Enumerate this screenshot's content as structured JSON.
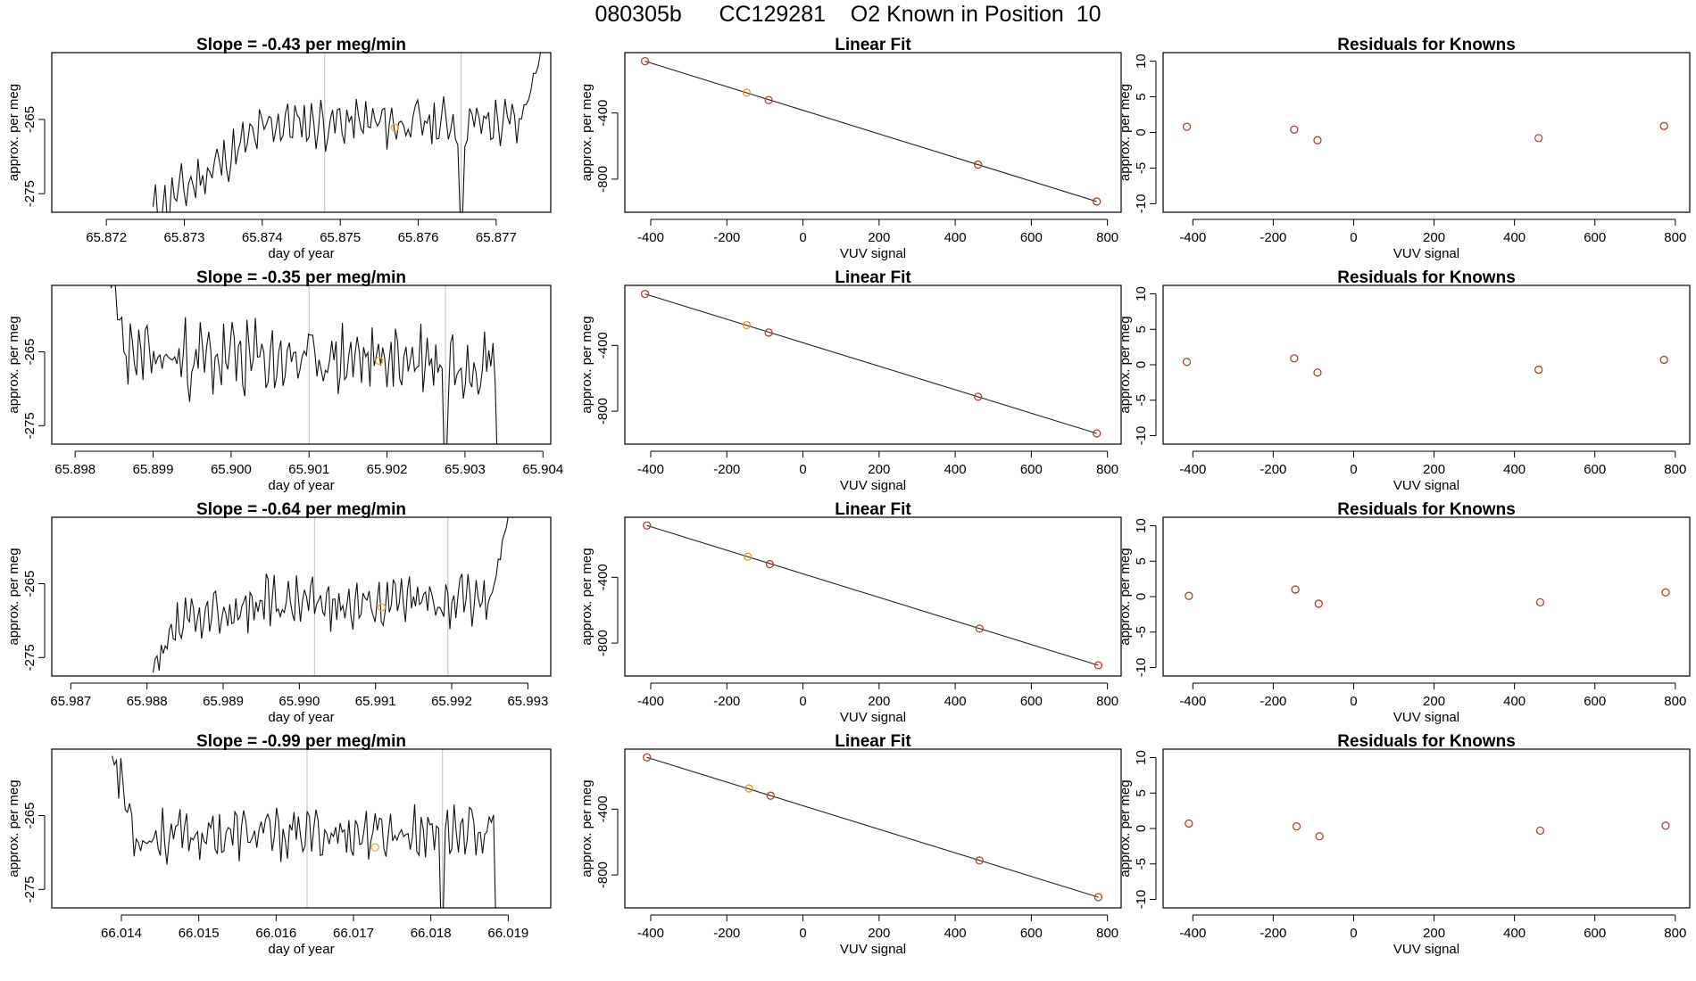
{
  "figure": {
    "title": "080305b      CC129281    O2 Known in Position  10"
  },
  "chart_data": [
    {
      "type": "line",
      "panel": "time",
      "title": "Slope =  -0.43  per meg/min",
      "xlabel": "day of year",
      "ylabel": "approx. per meg",
      "xlim": [
        65.8713,
        65.8777
      ],
      "ylim": [
        -277.5,
        -256.0
      ],
      "xticks": [
        65.872,
        65.873,
        65.874,
        65.875,
        65.876,
        65.877
      ],
      "xtick_labels": [
        "65.872",
        "65.873",
        "65.874",
        "65.875",
        "65.876",
        "65.877"
      ],
      "yticks": [
        -275,
        -265
      ],
      "ytick_labels": [
        "-275",
        "-265"
      ],
      "vlines": [
        65.8748,
        65.87655
      ],
      "marker": {
        "x": 65.8757,
        "y": -266.1
      },
      "trace": {
        "start": 65.8726,
        "end": 65.87775,
        "dips": [
          [
            65.87655,
            -278
          ]
        ],
        "rise_at": 65.8773,
        "rise_to": -253,
        "level_start": -277.5,
        "level_mid": -265.5,
        "level_end": -265.5,
        "amp": 2.5,
        "n": 170,
        "seed": 11
      }
    },
    {
      "type": "scatter",
      "panel": "fit",
      "title": "Linear Fit",
      "xlabel": "VUV signal",
      "ylabel": "approx. per meg",
      "xlim": [
        -468,
        836
      ],
      "ylim": [
        -1000,
        -35
      ],
      "xticks": [
        -400,
        -200,
        0,
        200,
        400,
        600,
        800
      ],
      "xtick_labels": [
        "-400",
        "-200",
        "0",
        "200",
        "400",
        "600",
        "800"
      ],
      "yticks": [
        -800,
        -400
      ],
      "ytick_labels": [
        "-800",
        "-400"
      ],
      "points": [
        {
          "x": -415,
          "y": -87,
          "color": "#b5402a"
        },
        {
          "x": -148,
          "y": -277,
          "color": "#e8952c"
        },
        {
          "x": -90,
          "y": -322,
          "color": "#b5402a"
        },
        {
          "x": 460,
          "y": -712,
          "color": "#b5402a"
        },
        {
          "x": 772,
          "y": -935,
          "color": "#b5402a"
        }
      ],
      "line": [
        [
          -415,
          -87
        ],
        [
          772,
          -935
        ]
      ]
    },
    {
      "type": "scatter",
      "panel": "resid",
      "title": "Residuals for Knowns",
      "xlabel": "VUV signal",
      "ylabel": "approx. per meg",
      "xlim": [
        -474,
        836
      ],
      "ylim": [
        -11.2,
        11.2
      ],
      "xticks": [
        -400,
        -200,
        0,
        200,
        400,
        600,
        800
      ],
      "xtick_labels": [
        "-400",
        "-200",
        "0",
        "200",
        "400",
        "600",
        "800"
      ],
      "yticks": [
        -10,
        -5,
        0,
        5,
        10
      ],
      "ytick_labels": [
        "-10",
        "-5",
        "0",
        "5",
        "10"
      ],
      "points": [
        {
          "x": -415,
          "y": 0.8,
          "color": "#b5402a"
        },
        {
          "x": -148,
          "y": 0.4,
          "color": "#b5402a"
        },
        {
          "x": -90,
          "y": -1.1,
          "color": "#b5402a"
        },
        {
          "x": 460,
          "y": -0.8,
          "color": "#b5402a"
        },
        {
          "x": 772,
          "y": 0.9,
          "color": "#b5402a"
        }
      ]
    },
    {
      "type": "line",
      "panel": "time",
      "title": "Slope =  -0.35  per meg/min",
      "xlabel": "day of year",
      "ylabel": "approx. per meg",
      "xlim": [
        65.8977,
        65.9041
      ],
      "ylim": [
        -277.5,
        -256.0
      ],
      "xticks": [
        65.898,
        65.899,
        65.9,
        65.901,
        65.902,
        65.903,
        65.904
      ],
      "xtick_labels": [
        "65.898",
        "65.899",
        "65.900",
        "65.901",
        "65.902",
        "65.903",
        "65.904"
      ],
      "yticks": [
        -275,
        -265
      ],
      "ytick_labels": [
        "-275",
        "-265"
      ],
      "vlines": [
        65.901,
        65.90275
      ],
      "marker": {
        "x": 65.9019,
        "y": -266.2
      },
      "trace": {
        "start": 65.89838,
        "end": 65.90355,
        "dips": [
          [
            65.90275,
            -280
          ]
        ],
        "rise_at": null,
        "rise_to": null,
        "start_level": -252,
        "level_start": -266,
        "level_mid": -266,
        "level_end": -266,
        "end_drop": -280,
        "amp": 3.8,
        "n": 190,
        "seed": 23
      }
    },
    {
      "type": "scatter",
      "panel": "fit",
      "title": "Linear Fit",
      "xlabel": "VUV signal",
      "ylabel": "approx. per meg",
      "xlim": [
        -468,
        836
      ],
      "ylim": [
        -1000,
        -35
      ],
      "xticks": [
        -400,
        -200,
        0,
        200,
        400,
        600,
        800
      ],
      "xtick_labels": [
        "-400",
        "-200",
        "0",
        "200",
        "400",
        "600",
        "800"
      ],
      "yticks": [
        -800,
        -400
      ],
      "ytick_labels": [
        "-800",
        "-400"
      ],
      "points": [
        {
          "x": -415,
          "y": -87,
          "color": "#b5402a"
        },
        {
          "x": -148,
          "y": -277,
          "color": "#e8952c"
        },
        {
          "x": -90,
          "y": -322,
          "color": "#b5402a"
        },
        {
          "x": 460,
          "y": -712,
          "color": "#b5402a"
        },
        {
          "x": 772,
          "y": -935,
          "color": "#b5402a"
        }
      ],
      "line": [
        [
          -415,
          -87
        ],
        [
          772,
          -935
        ]
      ]
    },
    {
      "type": "scatter",
      "panel": "resid",
      "title": "Residuals for Knowns",
      "xlabel": "VUV signal",
      "ylabel": "approx. per meg",
      "xlim": [
        -474,
        836
      ],
      "ylim": [
        -11.2,
        11.2
      ],
      "xticks": [
        -400,
        -200,
        0,
        200,
        400,
        600,
        800
      ],
      "xtick_labels": [
        "-400",
        "-200",
        "0",
        "200",
        "400",
        "600",
        "800"
      ],
      "yticks": [
        -10,
        -5,
        0,
        5,
        10
      ],
      "ytick_labels": [
        "-10",
        "-5",
        "0",
        "5",
        "10"
      ],
      "points": [
        {
          "x": -415,
          "y": 0.4,
          "color": "#b5402a"
        },
        {
          "x": -148,
          "y": 0.9,
          "color": "#b5402a"
        },
        {
          "x": -90,
          "y": -1.1,
          "color": "#b5402a"
        },
        {
          "x": 460,
          "y": -0.7,
          "color": "#b5402a"
        },
        {
          "x": 772,
          "y": 0.7,
          "color": "#b5402a"
        }
      ]
    },
    {
      "type": "line",
      "panel": "time",
      "title": "Slope =  -0.64  per meg/min",
      "xlabel": "day of year",
      "ylabel": "approx. per meg",
      "xlim": [
        65.98675,
        65.9933
      ],
      "ylim": [
        -277.5,
        -256.0
      ],
      "xticks": [
        65.987,
        65.988,
        65.989,
        65.99,
        65.991,
        65.992,
        65.993
      ],
      "xtick_labels": [
        "65.987",
        "65.988",
        "65.989",
        "65.990",
        "65.991",
        "65.992",
        "65.993"
      ],
      "yticks": [
        -275,
        -265
      ],
      "ytick_labels": [
        "-275",
        "-265"
      ],
      "vlines": [
        65.9902,
        65.99195
      ],
      "marker": {
        "x": 65.99108,
        "y": -268.2
      },
      "trace": {
        "start": 65.98808,
        "end": 65.99285,
        "dips": [],
        "rise_at": 65.9925,
        "rise_to": -255,
        "start_level": -278,
        "level_start": -272,
        "level_mid": -267.5,
        "level_end": -267,
        "amp": 2.6,
        "n": 180,
        "seed": 37
      }
    },
    {
      "type": "scatter",
      "panel": "fit",
      "title": "Linear Fit",
      "xlabel": "VUV signal",
      "ylabel": "approx. per meg",
      "xlim": [
        -468,
        836
      ],
      "ylim": [
        -1000,
        -35
      ],
      "xticks": [
        -400,
        -200,
        0,
        200,
        400,
        600,
        800
      ],
      "xtick_labels": [
        "-400",
        "-200",
        "0",
        "200",
        "400",
        "600",
        "800"
      ],
      "yticks": [
        -800,
        -400
      ],
      "ytick_labels": [
        "-800",
        "-400"
      ],
      "points": [
        {
          "x": -410,
          "y": -85,
          "color": "#b5402a"
        },
        {
          "x": -145,
          "y": -275,
          "color": "#e8952c"
        },
        {
          "x": -87,
          "y": -320,
          "color": "#b5402a"
        },
        {
          "x": 464,
          "y": -712,
          "color": "#b5402a"
        },
        {
          "x": 776,
          "y": -935,
          "color": "#b5402a"
        }
      ],
      "line": [
        [
          -410,
          -85
        ],
        [
          776,
          -935
        ]
      ]
    },
    {
      "type": "scatter",
      "panel": "resid",
      "title": "Residuals for Knowns",
      "xlabel": "VUV signal",
      "ylabel": "approx. per meg",
      "xlim": [
        -474,
        836
      ],
      "ylim": [
        -11.2,
        11.2
      ],
      "xticks": [
        -400,
        -200,
        0,
        200,
        400,
        600,
        800
      ],
      "xtick_labels": [
        "-400",
        "-200",
        "0",
        "200",
        "400",
        "600",
        "800"
      ],
      "yticks": [
        -10,
        -5,
        0,
        5,
        10
      ],
      "ytick_labels": [
        "-10",
        "-5",
        "0",
        "5",
        "10"
      ],
      "points": [
        {
          "x": -410,
          "y": 0.1,
          "color": "#b5402a"
        },
        {
          "x": -145,
          "y": 1.0,
          "color": "#b5402a"
        },
        {
          "x": -87,
          "y": -1.0,
          "color": "#b5402a"
        },
        {
          "x": 464,
          "y": -0.8,
          "color": "#b5402a"
        },
        {
          "x": 776,
          "y": 0.6,
          "color": "#b5402a"
        }
      ]
    },
    {
      "type": "line",
      "panel": "time",
      "title": "Slope =  -0.99  per meg/min",
      "xlabel": "day of year",
      "ylabel": "approx. per meg",
      "xlim": [
        66.0131,
        66.01955
      ],
      "ylim": [
        -277.5,
        -256.0
      ],
      "xticks": [
        66.014,
        66.015,
        66.016,
        66.017,
        66.018,
        66.019
      ],
      "xtick_labels": [
        "66.014",
        "66.015",
        "66.016",
        "66.017",
        "66.018",
        "66.019"
      ],
      "yticks": [
        -275,
        -265
      ],
      "ytick_labels": [
        "-275",
        "-265"
      ],
      "vlines": [
        66.0164,
        66.01815
      ],
      "marker": {
        "x": 66.01728,
        "y": -269.3
      },
      "trace": {
        "start": 66.01388,
        "end": 66.01898,
        "dips": [
          [
            66.01815,
            -279
          ]
        ],
        "rise_at": null,
        "rise_to": null,
        "start_level": -256,
        "level_start": -268,
        "level_mid": -267.5,
        "level_end": -267,
        "end_drop": -279,
        "amp": 2.6,
        "n": 180,
        "seed": 53
      }
    },
    {
      "type": "scatter",
      "panel": "fit",
      "title": "Linear Fit",
      "xlabel": "VUV signal",
      "ylabel": "approx. per meg",
      "xlim": [
        -468,
        836
      ],
      "ylim": [
        -1000,
        -35
      ],
      "xticks": [
        -400,
        -200,
        0,
        200,
        400,
        600,
        800
      ],
      "xtick_labels": [
        "-400",
        "-200",
        "0",
        "200",
        "400",
        "600",
        "800"
      ],
      "yticks": [
        -800,
        -400
      ],
      "ytick_labels": [
        "-800",
        "-400"
      ],
      "points": [
        {
          "x": -410,
          "y": -85,
          "color": "#b5402a"
        },
        {
          "x": -142,
          "y": -274,
          "color": "#e8952c"
        },
        {
          "x": -85,
          "y": -318,
          "color": "#b5402a"
        },
        {
          "x": 464,
          "y": -712,
          "color": "#b5402a"
        },
        {
          "x": 776,
          "y": -935,
          "color": "#b5402a"
        }
      ],
      "line": [
        [
          -410,
          -85
        ],
        [
          776,
          -935
        ]
      ]
    },
    {
      "type": "scatter",
      "panel": "resid",
      "title": "Residuals for Knowns",
      "xlabel": "VUV signal",
      "ylabel": "approx. per meg",
      "xlim": [
        -474,
        836
      ],
      "ylim": [
        -11.2,
        11.2
      ],
      "xticks": [
        -400,
        -200,
        0,
        200,
        400,
        600,
        800
      ],
      "xtick_labels": [
        "-400",
        "-200",
        "0",
        "200",
        "400",
        "600",
        "800"
      ],
      "yticks": [
        -10,
        -5,
        0,
        5,
        10
      ],
      "ytick_labels": [
        "-10",
        "-5",
        "0",
        "5",
        "10"
      ],
      "points": [
        {
          "x": -410,
          "y": 0.7,
          "color": "#b5402a"
        },
        {
          "x": -142,
          "y": 0.3,
          "color": "#b5402a"
        },
        {
          "x": -85,
          "y": -1.1,
          "color": "#b5402a"
        },
        {
          "x": 464,
          "y": -0.3,
          "color": "#b5402a"
        },
        {
          "x": 776,
          "y": 0.4,
          "color": "#b5402a"
        }
      ]
    }
  ]
}
